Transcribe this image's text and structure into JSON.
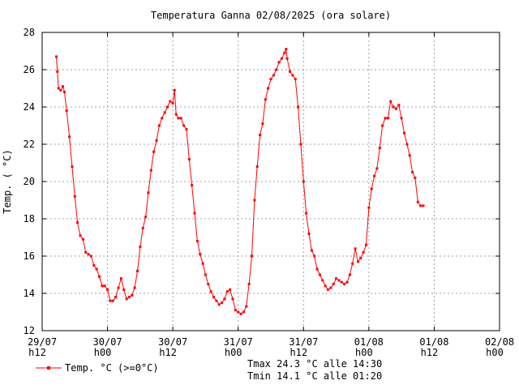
{
  "chart_data": {
    "type": "line",
    "title": "Temperatura Ganna 02/08/2025 (ora solare)",
    "ylabel": "Temp. ( °C)",
    "xlabel": "",
    "ylim": [
      12,
      28
    ],
    "yticks": [
      12,
      14,
      16,
      18,
      20,
      22,
      24,
      26,
      28
    ],
    "xlim": [
      0,
      84
    ],
    "xticks": [
      {
        "x": 0,
        "line1": "29/07",
        "line2": "h12"
      },
      {
        "x": 12,
        "line1": "30/07",
        "line2": "h00"
      },
      {
        "x": 24,
        "line1": "30/07",
        "line2": "h12"
      },
      {
        "x": 36,
        "line1": "31/07",
        "line2": "h00"
      },
      {
        "x": 48,
        "line1": "31/07",
        "line2": "h12"
      },
      {
        "x": 60,
        "line1": "01/08",
        "line2": "h00"
      },
      {
        "x": 72,
        "line1": "01/08",
        "line2": "h12"
      },
      {
        "x": 84,
        "line1": "02/08",
        "line2": "h00"
      }
    ],
    "grid": true,
    "legend_position": "bottom-left",
    "series": [
      {
        "name": "Temp. °C (>=0°C)",
        "color": "#ff0000",
        "points": [
          [
            2.6,
            26.7
          ],
          [
            2.8,
            25.9
          ],
          [
            3.0,
            25.0
          ],
          [
            3.4,
            24.9
          ],
          [
            3.8,
            25.1
          ],
          [
            4.1,
            24.8
          ],
          [
            4.5,
            23.8
          ],
          [
            5.0,
            22.4
          ],
          [
            5.5,
            20.8
          ],
          [
            6.0,
            19.2
          ],
          [
            6.5,
            17.8
          ],
          [
            7.0,
            17.1
          ],
          [
            7.5,
            16.9
          ],
          [
            8.0,
            16.2
          ],
          [
            8.5,
            16.1
          ],
          [
            9.0,
            16.0
          ],
          [
            9.5,
            15.5
          ],
          [
            10.0,
            15.3
          ],
          [
            10.5,
            14.9
          ],
          [
            11.0,
            14.4
          ],
          [
            11.5,
            14.4
          ],
          [
            12.0,
            14.2
          ],
          [
            12.5,
            13.6
          ],
          [
            13.0,
            13.6
          ],
          [
            13.5,
            13.8
          ],
          [
            14.0,
            14.3
          ],
          [
            14.5,
            14.8
          ],
          [
            15.0,
            14.2
          ],
          [
            15.5,
            13.7
          ],
          [
            16.0,
            13.8
          ],
          [
            16.5,
            13.9
          ],
          [
            17.0,
            14.3
          ],
          [
            17.5,
            15.2
          ],
          [
            18.0,
            16.5
          ],
          [
            18.5,
            17.5
          ],
          [
            19.0,
            18.1
          ],
          [
            19.5,
            19.4
          ],
          [
            20.0,
            20.6
          ],
          [
            20.5,
            21.6
          ],
          [
            21.0,
            22.2
          ],
          [
            21.5,
            23.0
          ],
          [
            22.0,
            23.4
          ],
          [
            22.5,
            23.7
          ],
          [
            23.0,
            24.0
          ],
          [
            23.5,
            24.3
          ],
          [
            24.0,
            24.2
          ],
          [
            24.3,
            24.9
          ],
          [
            24.6,
            23.6
          ],
          [
            25.0,
            23.4
          ],
          [
            25.5,
            23.4
          ],
          [
            26.0,
            23.0
          ],
          [
            26.5,
            22.8
          ],
          [
            27.0,
            21.2
          ],
          [
            27.5,
            19.8
          ],
          [
            28.0,
            18.3
          ],
          [
            28.5,
            16.8
          ],
          [
            29.0,
            16.1
          ],
          [
            29.5,
            15.6
          ],
          [
            30.0,
            15.0
          ],
          [
            30.5,
            14.5
          ],
          [
            31.0,
            14.1
          ],
          [
            31.5,
            13.8
          ],
          [
            32.0,
            13.6
          ],
          [
            32.5,
            13.4
          ],
          [
            33.0,
            13.5
          ],
          [
            33.5,
            13.7
          ],
          [
            34.0,
            14.1
          ],
          [
            34.5,
            14.2
          ],
          [
            35.0,
            13.7
          ],
          [
            35.5,
            13.1
          ],
          [
            36.0,
            13.0
          ],
          [
            36.5,
            12.9
          ],
          [
            37.0,
            13.0
          ],
          [
            37.5,
            13.3
          ],
          [
            38.0,
            14.5
          ],
          [
            38.5,
            16.0
          ],
          [
            39.0,
            19.0
          ],
          [
            39.5,
            20.8
          ],
          [
            40.0,
            22.5
          ],
          [
            40.5,
            23.1
          ],
          [
            41.0,
            24.4
          ],
          [
            41.5,
            25.0
          ],
          [
            42.0,
            25.5
          ],
          [
            42.5,
            25.7
          ],
          [
            43.0,
            26.0
          ],
          [
            43.5,
            26.4
          ],
          [
            44.0,
            26.6
          ],
          [
            44.5,
            26.9
          ],
          [
            44.8,
            27.1
          ],
          [
            45.0,
            26.6
          ],
          [
            45.5,
            25.9
          ],
          [
            46.0,
            25.7
          ],
          [
            46.5,
            25.5
          ],
          [
            47.0,
            24.0
          ],
          [
            47.5,
            22.0
          ],
          [
            48.0,
            20.0
          ],
          [
            48.5,
            18.3
          ],
          [
            49.0,
            17.2
          ],
          [
            49.5,
            16.3
          ],
          [
            50.0,
            16.0
          ],
          [
            50.5,
            15.3
          ],
          [
            51.0,
            15.0
          ],
          [
            51.5,
            14.7
          ],
          [
            52.0,
            14.4
          ],
          [
            52.5,
            14.2
          ],
          [
            53.0,
            14.3
          ],
          [
            53.5,
            14.5
          ],
          [
            54.0,
            14.8
          ],
          [
            54.5,
            14.7
          ],
          [
            55.0,
            14.6
          ],
          [
            55.5,
            14.5
          ],
          [
            56.0,
            14.6
          ],
          [
            56.5,
            15.0
          ],
          [
            57.0,
            15.6
          ],
          [
            57.5,
            16.4
          ],
          [
            58.0,
            15.7
          ],
          [
            58.5,
            15.9
          ],
          [
            59.0,
            16.2
          ],
          [
            59.5,
            16.6
          ],
          [
            60.0,
            18.6
          ],
          [
            60.5,
            19.6
          ],
          [
            61.0,
            20.3
          ],
          [
            61.5,
            20.7
          ],
          [
            62.0,
            21.8
          ],
          [
            62.5,
            23.0
          ],
          [
            63.0,
            23.4
          ],
          [
            63.5,
            23.4
          ],
          [
            64.0,
            24.3
          ],
          [
            64.5,
            24.0
          ],
          [
            65.0,
            23.9
          ],
          [
            65.5,
            24.1
          ],
          [
            66.0,
            23.4
          ],
          [
            66.5,
            22.6
          ],
          [
            67.0,
            22.0
          ],
          [
            67.5,
            21.4
          ],
          [
            68.0,
            20.5
          ],
          [
            68.5,
            20.2
          ],
          [
            69.0,
            18.9
          ],
          [
            69.5,
            18.7
          ],
          [
            70.0,
            18.7
          ]
        ]
      }
    ],
    "stats": {
      "tmax": "Tmax 24.3 °C alle 14:30",
      "tmin": "Tmin 14.1 °C alle 01:20"
    }
  }
}
